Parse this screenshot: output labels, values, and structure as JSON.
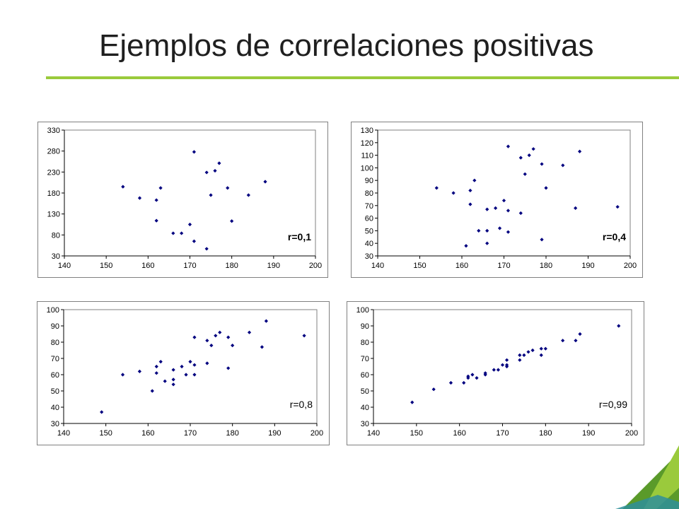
{
  "title": "Ejemplos de correlaciones positivas",
  "colors": {
    "accent": "#9ACA3C",
    "accent_dark": "#5A9A2A",
    "point": "#00007F",
    "title": "#1F1F1F"
  },
  "chart_data": [
    {
      "type": "scatter",
      "annotation": "r=0,1",
      "xlim": [
        140,
        200
      ],
      "ylim": [
        30,
        330
      ],
      "xticks": [
        "140",
        "150",
        "160",
        "170",
        "180",
        "190",
        "200"
      ],
      "yticks": [
        "30",
        "80",
        "130",
        "180",
        "230",
        "280",
        "330"
      ],
      "x": [
        154,
        158,
        162,
        162,
        163,
        166,
        168,
        170,
        171,
        171,
        174,
        174,
        175,
        176,
        177,
        179,
        180,
        184,
        188
      ],
      "y": [
        195,
        168,
        114,
        163,
        192,
        84,
        84,
        105,
        278,
        65,
        229,
        47,
        175,
        233,
        251,
        192,
        113,
        175,
        207
      ]
    },
    {
      "type": "scatter",
      "annotation": "r=0,4",
      "xlim": [
        140,
        200
      ],
      "ylim": [
        30,
        130
      ],
      "xticks": [
        "140",
        "150",
        "160",
        "170",
        "180",
        "190",
        "200"
      ],
      "yticks": [
        "30",
        "40",
        "50",
        "60",
        "70",
        "80",
        "90",
        "100",
        "110",
        "120",
        "130"
      ],
      "x": [
        154,
        158,
        161,
        162,
        162,
        163,
        164,
        166,
        166,
        166,
        168,
        169,
        170,
        171,
        171,
        171,
        174,
        174,
        175,
        176,
        177,
        179,
        179,
        180,
        184,
        187,
        188,
        197
      ],
      "y": [
        84,
        80,
        38,
        71,
        82,
        90,
        50,
        67,
        50,
        40,
        68,
        52,
        74,
        117,
        66,
        49,
        64,
        108,
        95,
        110,
        115,
        103,
        43,
        84,
        102,
        68,
        113,
        69
      ]
    },
    {
      "type": "scatter",
      "annotation": "r=0,8",
      "xlim": [
        140,
        200
      ],
      "ylim": [
        30,
        100
      ],
      "xticks": [
        "140",
        "150",
        "160",
        "170",
        "180",
        "190",
        "200"
      ],
      "yticks": [
        "30",
        "40",
        "50",
        "60",
        "70",
        "80",
        "90",
        "100"
      ],
      "x": [
        149,
        154,
        158,
        161,
        162,
        162,
        163,
        164,
        166,
        166,
        166,
        168,
        169,
        170,
        171,
        171,
        171,
        174,
        174,
        175,
        176,
        177,
        179,
        179,
        180,
        184,
        187,
        188,
        197
      ],
      "y": [
        37,
        60,
        62,
        50,
        65,
        61,
        68,
        56,
        57,
        54,
        63,
        65,
        60,
        68,
        83,
        66,
        60,
        81,
        67,
        78,
        84,
        86,
        83,
        64,
        78,
        86,
        77,
        93,
        84
      ]
    },
    {
      "type": "scatter",
      "annotation": "r=0,99",
      "xlim": [
        140,
        200
      ],
      "ylim": [
        30,
        100
      ],
      "xticks": [
        "140",
        "150",
        "160",
        "170",
        "180",
        "190",
        "200"
      ],
      "yticks": [
        "30",
        "40",
        "50",
        "60",
        "70",
        "80",
        "90",
        "100"
      ],
      "x": [
        149,
        154,
        158,
        161,
        162,
        162,
        163,
        164,
        166,
        166,
        168,
        169,
        170,
        171,
        171,
        171,
        174,
        174,
        175,
        176,
        177,
        179,
        179,
        180,
        184,
        187,
        188,
        197
      ],
      "y": [
        43,
        51,
        55,
        55,
        58,
        59,
        60,
        58,
        60,
        61,
        63,
        63,
        66,
        65,
        66,
        69,
        69,
        72,
        72,
        74,
        75,
        72,
        76,
        76,
        81,
        81,
        85,
        90
      ]
    }
  ]
}
